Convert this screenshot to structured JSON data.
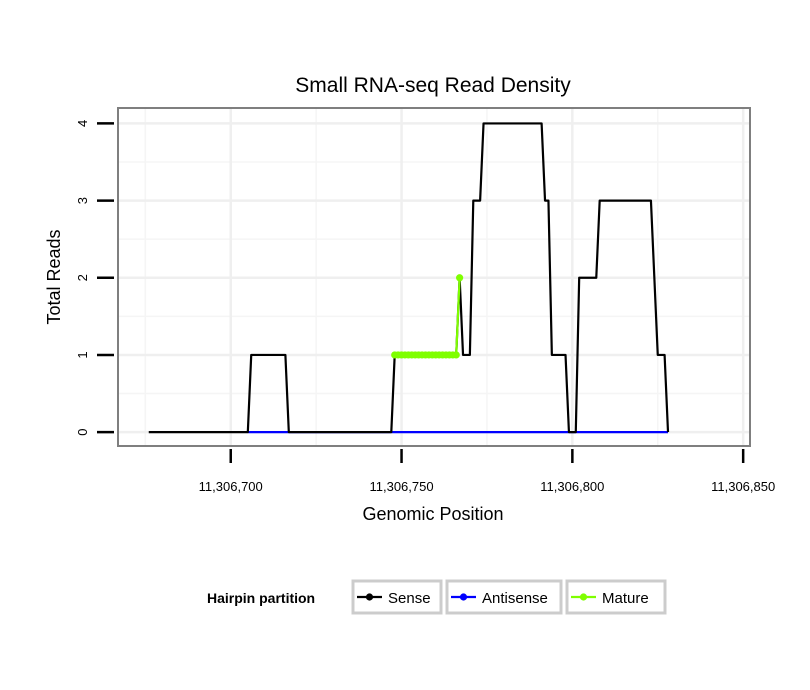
{
  "chart_data": {
    "type": "line",
    "title": "Small RNA-seq Read Density",
    "xlabel": "Genomic Position",
    "ylabel": "Total Reads",
    "xlim": [
      11306667,
      11306852
    ],
    "ylim": [
      -0.18,
      4.2
    ],
    "x_ticks": [
      11306700,
      11306750,
      11306800,
      11306850
    ],
    "x_tick_labels": [
      "11,306,700",
      "11,306,750",
      "11,306,800",
      "11,306,850"
    ],
    "y_ticks": [
      0,
      1,
      2,
      3,
      4
    ],
    "y_tick_labels": [
      "0",
      "1",
      "2",
      "3",
      "4"
    ],
    "grid": true,
    "legend": {
      "title": "Hairpin partition",
      "position": "bottom",
      "entries": [
        "Sense",
        "Antisense",
        "Mature"
      ]
    },
    "series": [
      {
        "name": "Sense",
        "color": "#000000",
        "points": [
          [
            11306676,
            0
          ],
          [
            11306705,
            0
          ],
          [
            11306706,
            1
          ],
          [
            11306716,
            1
          ],
          [
            11306717,
            0
          ],
          [
            11306747,
            0
          ],
          [
            11306748,
            1
          ],
          [
            11306766,
            1
          ],
          [
            11306767,
            2
          ],
          [
            11306768,
            1
          ],
          [
            11306770,
            1
          ],
          [
            11306771,
            3
          ],
          [
            11306773,
            3
          ],
          [
            11306774,
            4
          ],
          [
            11306791,
            4
          ],
          [
            11306792,
            3
          ],
          [
            11306793,
            3
          ],
          [
            11306794,
            1
          ],
          [
            11306798,
            1
          ],
          [
            11306799,
            0
          ],
          [
            11306801,
            0
          ],
          [
            11306802,
            2
          ],
          [
            11306807,
            2
          ],
          [
            11306808,
            3
          ],
          [
            11306823,
            3
          ],
          [
            11306824,
            2
          ],
          [
            11306825,
            1
          ],
          [
            11306827,
            1
          ],
          [
            11306828,
            0
          ]
        ]
      },
      {
        "name": "Antisense",
        "color": "#0000ff",
        "points": [
          [
            11306705,
            0
          ],
          [
            11306828,
            0
          ]
        ]
      },
      {
        "name": "Mature",
        "color": "#7fff00",
        "marker": "circle",
        "points": [
          [
            11306748,
            1
          ],
          [
            11306749,
            1
          ],
          [
            11306750,
            1
          ],
          [
            11306751,
            1
          ],
          [
            11306752,
            1
          ],
          [
            11306753,
            1
          ],
          [
            11306754,
            1
          ],
          [
            11306755,
            1
          ],
          [
            11306756,
            1
          ],
          [
            11306757,
            1
          ],
          [
            11306758,
            1
          ],
          [
            11306759,
            1
          ],
          [
            11306760,
            1
          ],
          [
            11306761,
            1
          ],
          [
            11306762,
            1
          ],
          [
            11306763,
            1
          ],
          [
            11306764,
            1
          ],
          [
            11306765,
            1
          ],
          [
            11306766,
            1
          ],
          [
            11306767,
            2
          ]
        ]
      }
    ]
  }
}
